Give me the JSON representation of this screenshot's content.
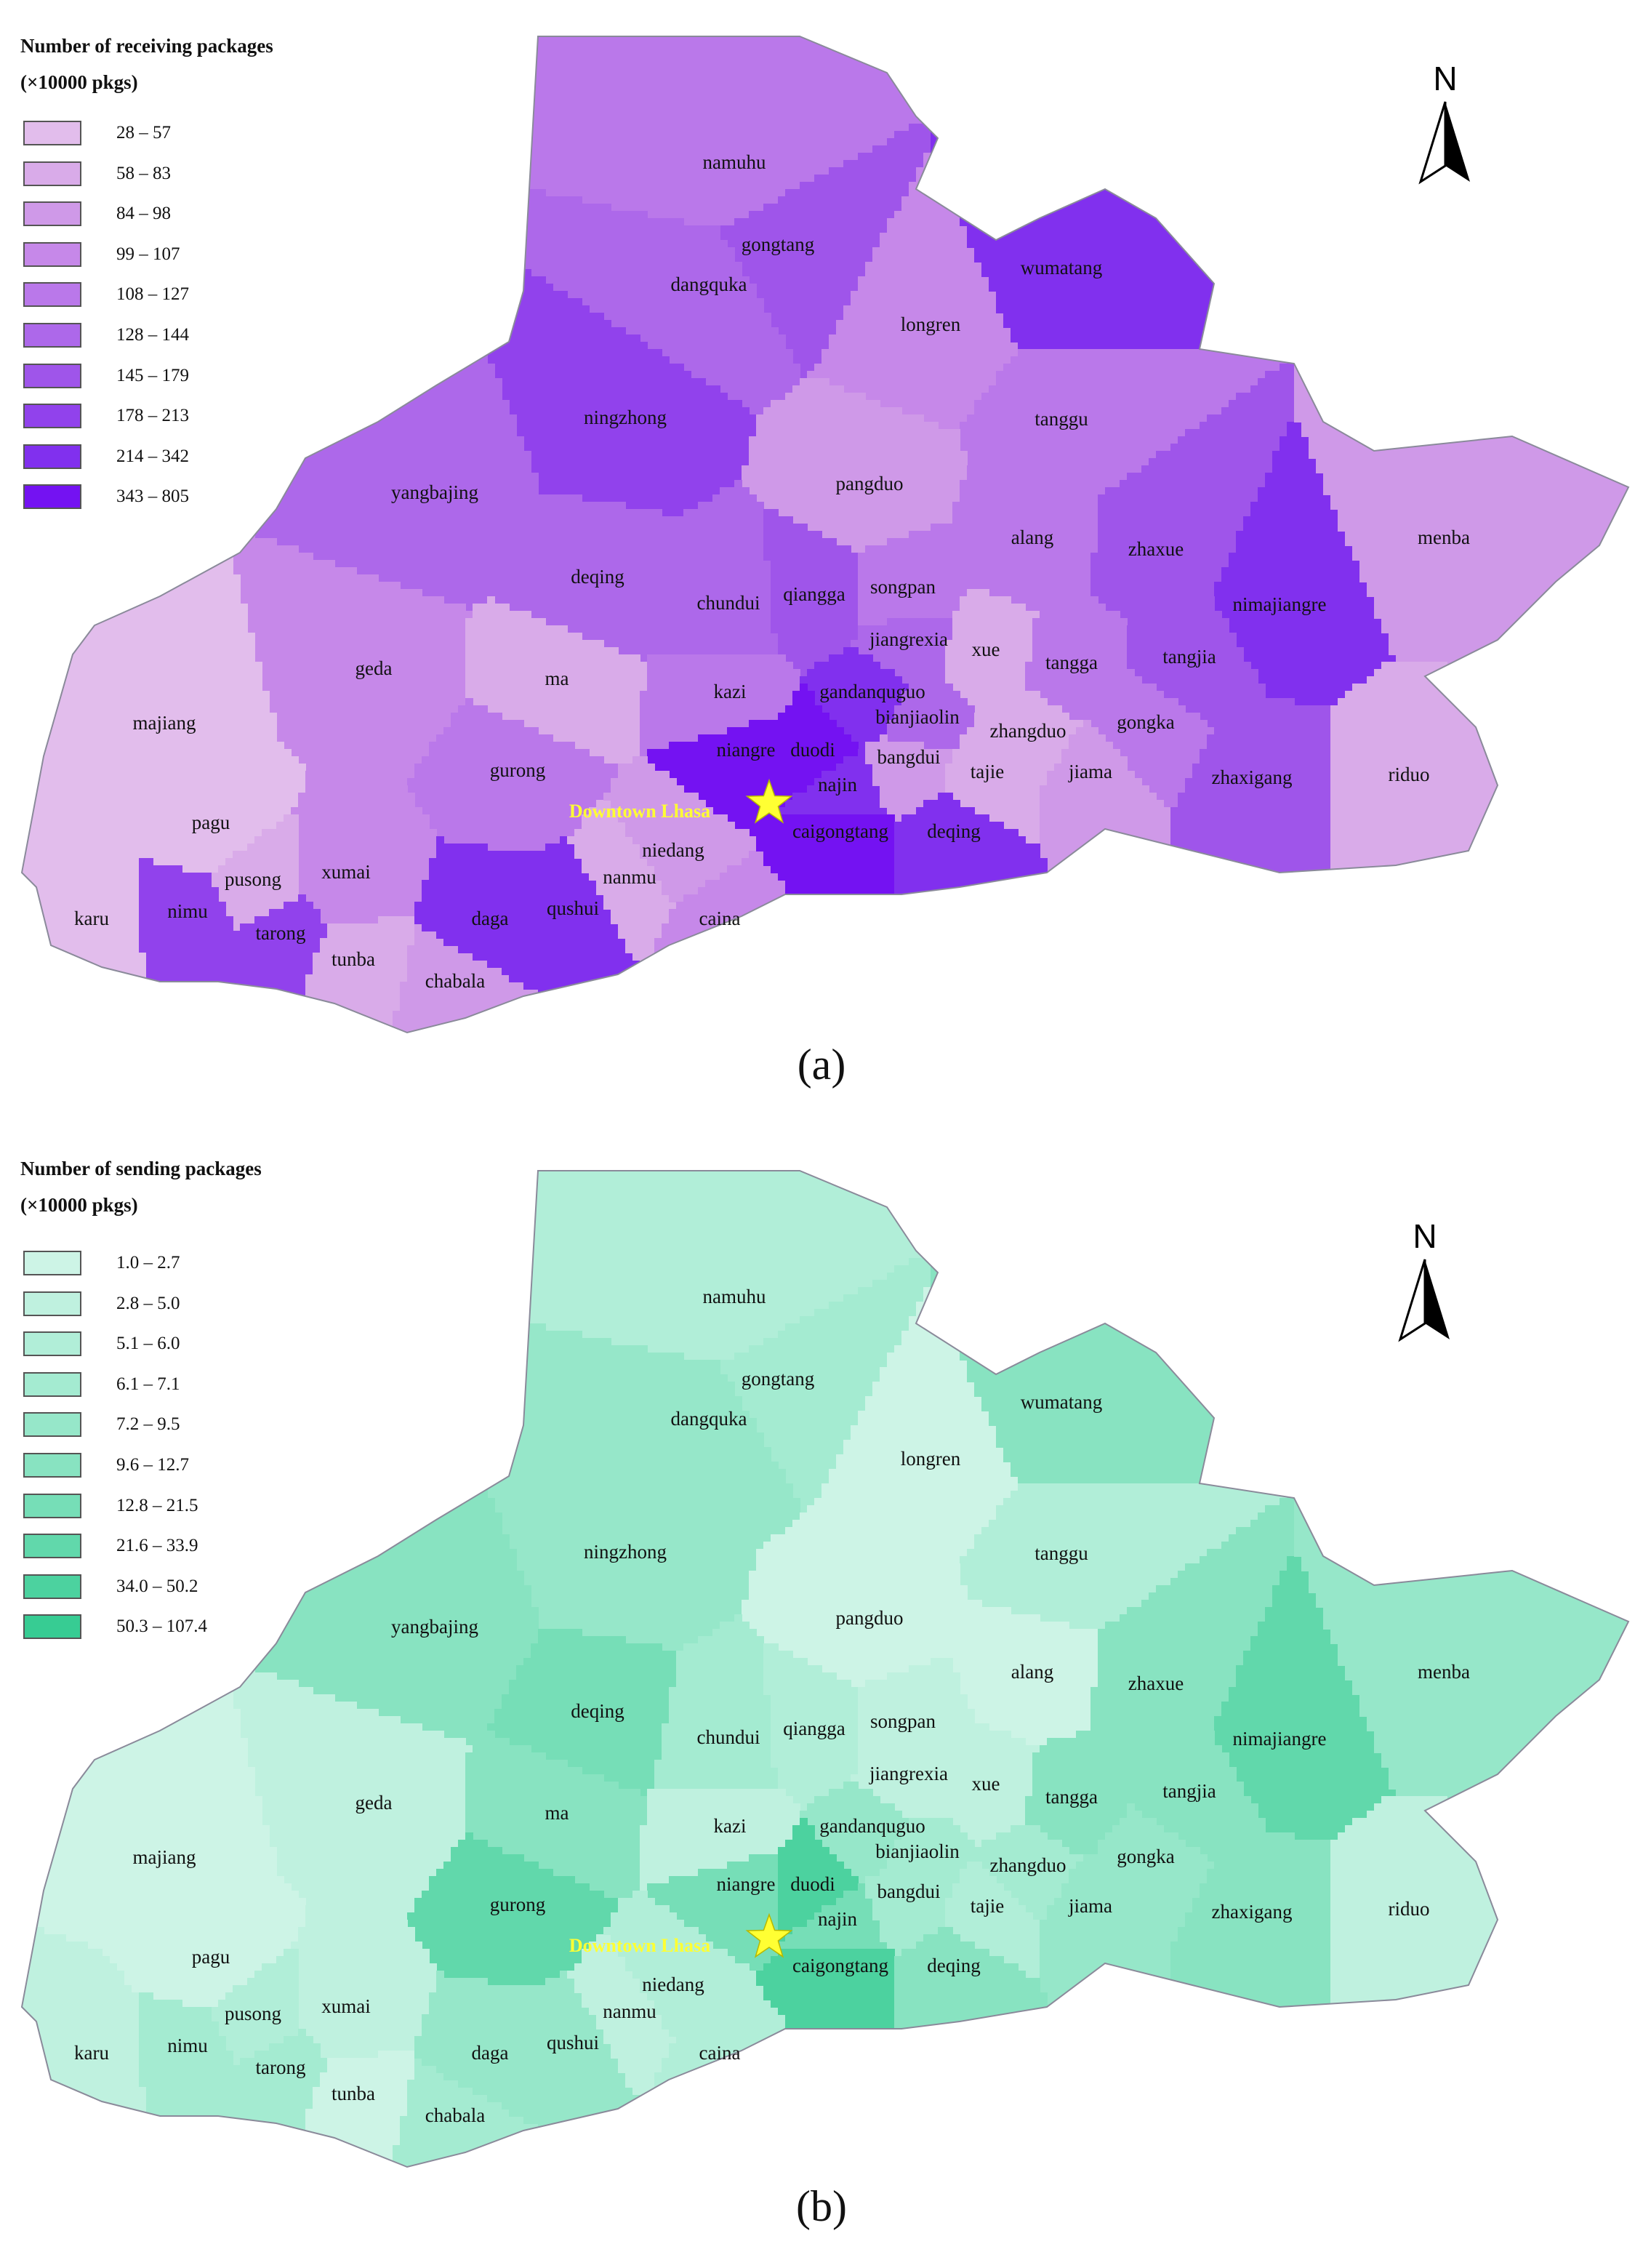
{
  "north_label": "N",
  "downtown_label": "Downtown Lhasa",
  "star_color": "#ffff33",
  "panels": [
    {
      "caption": "(a)",
      "legend_title_1": "Number of receiving packages",
      "legend_title_2": "(×10000 pkgs)",
      "classes": [
        "28 – 57",
        "58 – 83",
        "84 – 98",
        "99 – 107",
        "108 – 127",
        "128 – 144",
        "145 – 179",
        "178 – 213",
        "214 – 342",
        "343 – 805"
      ],
      "colors": [
        "#e2bdec",
        "#d9abe9",
        "#cf99e8",
        "#c688e9",
        "#ba78ea",
        "#ad68ea",
        "#9f55ea",
        "#9142ec",
        "#8130ee",
        "#7412f2"
      ],
      "regions": {
        "namuhu": 4,
        "gongtang": 6,
        "dangquka": 5,
        "longren": 3,
        "wumatang": 8,
        "ningzhong": 7,
        "tanggu": 4,
        "yangbajing": 5,
        "pangduo": 2,
        "alang": 4,
        "zhaxue": 6,
        "nimajiangre": 8,
        "menba": 2,
        "deqing": 5,
        "chundui": 5,
        "qiangga": 6,
        "songpan": 4,
        "jiangrexia": 5,
        "xue": 1,
        "tangga": 4,
        "tangjia": 6,
        "geda": 3,
        "ma": 1,
        "kazi": 4,
        "gandanquguo": 8,
        "bianjiaolin": 5,
        "zhangduo": 1,
        "gongka": 4,
        "majiang": 0,
        "gurong": 4,
        "niangre": 9,
        "duodi": 9,
        "najin": 8,
        "bangdui": 2,
        "tajie": 1,
        "jiama": 2,
        "zhaxigang": 6,
        "riduo": 1,
        "pagu": 0,
        "xumai": 3,
        "pusong": 1,
        "nimu": 7,
        "karu": 0,
        "tarong": 7,
        "tunba": 1,
        "chabala": 2,
        "daga": 8,
        "qushui": 8,
        "nanmu": 1,
        "niedang": 2,
        "caina": 3,
        "caigongtang": 9,
        "deqing2": 8
      }
    },
    {
      "caption": "(b)",
      "legend_title_1": "Number of sending packages",
      "legend_title_2": "(×10000 pkgs)",
      "classes": [
        "1.0 – 2.7",
        "2.8 – 5.0",
        "5.1 – 6.0",
        "6.1 – 7.1",
        "7.2 – 9.5",
        "9.6 – 12.7",
        "12.8 – 21.5",
        "21.6 – 33.9",
        "34.0 – 50.2",
        "50.3 – 107.4"
      ],
      "colors": [
        "#cdf4e6",
        "#bff1df",
        "#b1eed8",
        "#a4ebd1",
        "#96e7c9",
        "#88e3c1",
        "#76deb7",
        "#61d8ab",
        "#4cd29f",
        "#37cc93"
      ],
      "regions": {
        "namuhu": 2,
        "gongtang": 3,
        "dangquka": 4,
        "longren": 0,
        "wumatang": 5,
        "ningzhong": 4,
        "tanggu": 2,
        "yangbajing": 5,
        "pangduo": 0,
        "alang": 0,
        "zhaxue": 5,
        "nimajiangre": 7,
        "menba": 4,
        "deqing": 6,
        "chundui": 3,
        "qiangga": 2,
        "songpan": 1,
        "jiangrexia": 1,
        "xue": 1,
        "tangga": 5,
        "tangjia": 5,
        "geda": 1,
        "ma": 5,
        "kazi": 1,
        "gandanquguo": 4,
        "bianjiaolin": 3,
        "zhangduo": 3,
        "gongka": 4,
        "majiang": 0,
        "gurong": 7,
        "niangre": 6,
        "duodi": 8,
        "najin": 6,
        "bangdui": 3,
        "tajie": 2,
        "jiama": 4,
        "zhaxigang": 5,
        "riduo": 1,
        "pagu": 0,
        "xumai": 1,
        "pusong": 2,
        "nimu": 3,
        "karu": 1,
        "tarong": 3,
        "tunba": 0,
        "chabala": 3,
        "daga": 4,
        "qushui": 4,
        "nanmu": 1,
        "niedang": 2,
        "caina": 2,
        "caigongtang": 8,
        "deqing2": 5
      }
    }
  ],
  "region_labels": {
    "namuhu": "namuhu",
    "gongtang": "gongtang",
    "dangquka": "dangquka",
    "longren": "longren",
    "wumatang": "wumatang",
    "ningzhong": "ningzhong",
    "tanggu": "tanggu",
    "yangbajing": "yangbajing",
    "pangduo": "pangduo",
    "alang": "alang",
    "zhaxue": "zhaxue",
    "nimajiangre": "nimajiangre",
    "menba": "menba",
    "deqing": "deqing",
    "chundui": "chundui",
    "qiangga": "qiangga",
    "songpan": "songpan",
    "jiangrexia": "jiangrexia",
    "xue": "xue",
    "tangga": "tangga",
    "tangjia": "tangjia",
    "geda": "geda",
    "ma": "ma",
    "kazi": "kazi",
    "gandanquguo": "gandanquguo",
    "bianjiaolin": "bianjiaolin",
    "zhangduo": "zhangduo",
    "gongka": "gongka",
    "majiang": "majiang",
    "gurong": "gurong",
    "niangre": "niangre",
    "duodi": "duodi",
    "najin": "najin",
    "bangdui": "bangdui",
    "tajie": "tajie",
    "jiama": "jiama",
    "zhaxigang": "zhaxigang",
    "riduo": "riduo",
    "pagu": "pagu",
    "xumai": "xumai",
    "pusong": "pusong",
    "nimu": "nimu",
    "karu": "karu",
    "tarong": "tarong",
    "tunba": "tunba",
    "chabala": "chabala",
    "daga": "daga",
    "qushui": "qushui",
    "nanmu": "nanmu",
    "niedang": "niedang",
    "caina": "caina",
    "caigongtang": "caigongtang",
    "deqing2": "deqing"
  }
}
